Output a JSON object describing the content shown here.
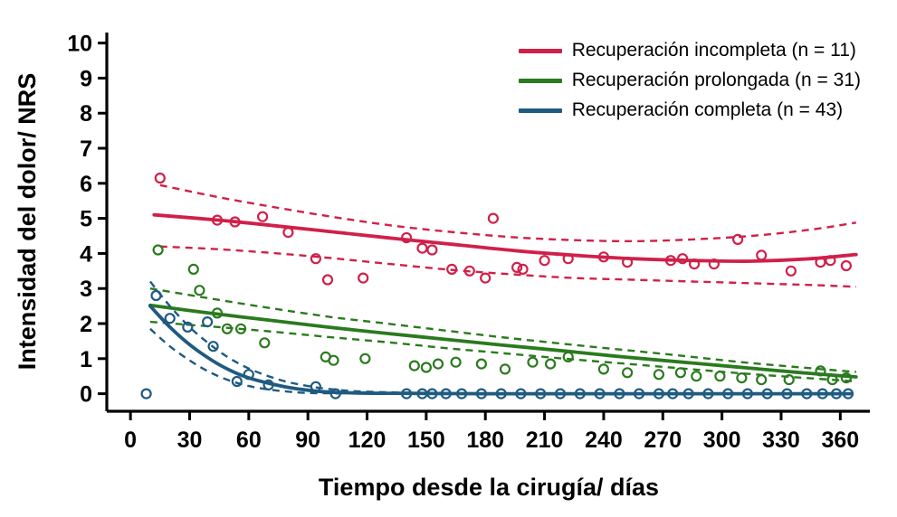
{
  "chart_data": {
    "type": "scatter",
    "title": "",
    "xlabel": "Tiempo desde la cirugía/ días",
    "ylabel": "Intensidad del dolor/ NRS",
    "xlim": [
      -12,
      375
    ],
    "ylim": [
      -0.5,
      10.3
    ],
    "x_ticks": [
      0,
      30,
      60,
      90,
      120,
      150,
      180,
      210,
      240,
      270,
      300,
      330,
      360
    ],
    "y_ticks": [
      0,
      1,
      2,
      3,
      4,
      5,
      6,
      7,
      8,
      9,
      10
    ],
    "grid": false,
    "legend_position": "top-right",
    "axis_color": "#000000",
    "series": [
      {
        "name": "Recuperación incompleta (n = 11)",
        "color": "#d0204a",
        "points": [
          [
            15,
            6.15
          ],
          [
            44,
            4.95
          ],
          [
            53,
            4.9
          ],
          [
            67,
            5.05
          ],
          [
            80,
            4.6
          ],
          [
            94,
            3.85
          ],
          [
            100,
            3.25
          ],
          [
            118,
            3.3
          ],
          [
            140,
            4.45
          ],
          [
            148,
            4.15
          ],
          [
            153,
            4.1
          ],
          [
            163,
            3.55
          ],
          [
            172,
            3.5
          ],
          [
            180,
            3.3
          ],
          [
            184,
            5.0
          ],
          [
            196,
            3.6
          ],
          [
            199,
            3.55
          ],
          [
            210,
            3.8
          ],
          [
            222,
            3.85
          ],
          [
            240,
            3.9
          ],
          [
            252,
            3.75
          ],
          [
            274,
            3.8
          ],
          [
            280,
            3.85
          ],
          [
            286,
            3.7
          ],
          [
            296,
            3.7
          ],
          [
            308,
            4.4
          ],
          [
            320,
            3.95
          ],
          [
            335,
            3.5
          ],
          [
            350,
            3.75
          ],
          [
            355,
            3.8
          ],
          [
            363,
            3.65
          ]
        ],
        "fit": [
          [
            12,
            5.1
          ],
          [
            45,
            4.95
          ],
          [
            75,
            4.78
          ],
          [
            105,
            4.6
          ],
          [
            135,
            4.42
          ],
          [
            165,
            4.25
          ],
          [
            195,
            4.08
          ],
          [
            225,
            3.95
          ],
          [
            255,
            3.85
          ],
          [
            285,
            3.8
          ],
          [
            315,
            3.78
          ],
          [
            345,
            3.85
          ],
          [
            368,
            3.97
          ]
        ],
        "ci_upper": [
          [
            15,
            5.95
          ],
          [
            45,
            5.6
          ],
          [
            75,
            5.3
          ],
          [
            105,
            5.02
          ],
          [
            135,
            4.78
          ],
          [
            165,
            4.6
          ],
          [
            195,
            4.46
          ],
          [
            225,
            4.38
          ],
          [
            255,
            4.35
          ],
          [
            285,
            4.4
          ],
          [
            315,
            4.5
          ],
          [
            345,
            4.68
          ],
          [
            368,
            4.88
          ]
        ],
        "ci_lower": [
          [
            15,
            4.2
          ],
          [
            45,
            4.12
          ],
          [
            75,
            4.0
          ],
          [
            105,
            3.85
          ],
          [
            135,
            3.68
          ],
          [
            165,
            3.52
          ],
          [
            195,
            3.4
          ],
          [
            225,
            3.3
          ],
          [
            255,
            3.25
          ],
          [
            285,
            3.2
          ],
          [
            315,
            3.15
          ],
          [
            345,
            3.1
          ],
          [
            368,
            3.05
          ]
        ]
      },
      {
        "name": "Recuperación prolongada (n = 31)",
        "color": "#2a7a1e",
        "points": [
          [
            14,
            4.1
          ],
          [
            32,
            3.55
          ],
          [
            35,
            2.95
          ],
          [
            44,
            2.3
          ],
          [
            49,
            1.85
          ],
          [
            56,
            1.85
          ],
          [
            68,
            1.45
          ],
          [
            99,
            1.05
          ],
          [
            103,
            0.95
          ],
          [
            119,
            1.0
          ],
          [
            144,
            0.8
          ],
          [
            150,
            0.75
          ],
          [
            156,
            0.85
          ],
          [
            165,
            0.9
          ],
          [
            178,
            0.85
          ],
          [
            190,
            0.7
          ],
          [
            204,
            0.9
          ],
          [
            213,
            0.85
          ],
          [
            222,
            1.05
          ],
          [
            240,
            0.7
          ],
          [
            252,
            0.6
          ],
          [
            268,
            0.55
          ],
          [
            279,
            0.6
          ],
          [
            287,
            0.5
          ],
          [
            299,
            0.5
          ],
          [
            310,
            0.45
          ],
          [
            320,
            0.4
          ],
          [
            334,
            0.4
          ],
          [
            350,
            0.65
          ],
          [
            356,
            0.4
          ],
          [
            363,
            0.45
          ]
        ],
        "fit": [
          [
            10,
            2.52
          ],
          [
            40,
            2.3
          ],
          [
            70,
            2.1
          ],
          [
            100,
            1.9
          ],
          [
            130,
            1.72
          ],
          [
            160,
            1.55
          ],
          [
            190,
            1.38
          ],
          [
            220,
            1.22
          ],
          [
            250,
            1.05
          ],
          [
            280,
            0.9
          ],
          [
            310,
            0.75
          ],
          [
            340,
            0.6
          ],
          [
            368,
            0.48
          ]
        ],
        "ci_upper": [
          [
            10,
            3.0
          ],
          [
            40,
            2.72
          ],
          [
            70,
            2.45
          ],
          [
            100,
            2.2
          ],
          [
            130,
            2.0
          ],
          [
            160,
            1.8
          ],
          [
            190,
            1.6
          ],
          [
            220,
            1.42
          ],
          [
            250,
            1.25
          ],
          [
            280,
            1.08
          ],
          [
            310,
            0.9
          ],
          [
            340,
            0.75
          ],
          [
            368,
            0.62
          ]
        ],
        "ci_lower": [
          [
            10,
            2.05
          ],
          [
            40,
            1.92
          ],
          [
            70,
            1.78
          ],
          [
            100,
            1.62
          ],
          [
            130,
            1.47
          ],
          [
            160,
            1.3
          ],
          [
            190,
            1.15
          ],
          [
            220,
            1.0
          ],
          [
            250,
            0.86
          ],
          [
            280,
            0.72
          ],
          [
            310,
            0.58
          ],
          [
            340,
            0.46
          ],
          [
            368,
            0.35
          ]
        ]
      },
      {
        "name": "Recuperación completa (n = 43)",
        "color": "#1f5a80",
        "points": [
          [
            8,
            0
          ],
          [
            13,
            2.8
          ],
          [
            20,
            2.15
          ],
          [
            29,
            1.9
          ],
          [
            39,
            2.05
          ],
          [
            42,
            1.35
          ],
          [
            54,
            0.35
          ],
          [
            60,
            0.55
          ],
          [
            70,
            0.25
          ],
          [
            94,
            0.2
          ],
          [
            104,
            0
          ],
          [
            140,
            0
          ],
          [
            148,
            0
          ],
          [
            153,
            0
          ],
          [
            160,
            0
          ],
          [
            168,
            0
          ],
          [
            178,
            0
          ],
          [
            188,
            0
          ],
          [
            198,
            0
          ],
          [
            208,
            0
          ],
          [
            218,
            0
          ],
          [
            228,
            0
          ],
          [
            238,
            0
          ],
          [
            248,
            0
          ],
          [
            258,
            0
          ],
          [
            268,
            0
          ],
          [
            275,
            0
          ],
          [
            283,
            0
          ],
          [
            293,
            0
          ],
          [
            303,
            0
          ],
          [
            313,
            0
          ],
          [
            323,
            0
          ],
          [
            333,
            0
          ],
          [
            343,
            0
          ],
          [
            351,
            0
          ],
          [
            358,
            0
          ],
          [
            364,
            0
          ]
        ],
        "fit": [
          [
            10,
            2.5
          ],
          [
            20,
            1.9
          ],
          [
            30,
            1.4
          ],
          [
            40,
            1.0
          ],
          [
            50,
            0.68
          ],
          [
            60,
            0.45
          ],
          [
            70,
            0.3
          ],
          [
            80,
            0.18
          ],
          [
            90,
            0.1
          ],
          [
            100,
            0.05
          ],
          [
            115,
            0.02
          ],
          [
            140,
            0.01
          ],
          [
            180,
            0
          ],
          [
            240,
            0
          ],
          [
            300,
            0
          ],
          [
            365,
            0
          ]
        ],
        "ci_upper": [
          [
            10,
            3.2
          ],
          [
            20,
            2.5
          ],
          [
            30,
            1.9
          ],
          [
            40,
            1.42
          ],
          [
            50,
            1.02
          ],
          [
            60,
            0.72
          ],
          [
            70,
            0.5
          ],
          [
            80,
            0.33
          ],
          [
            90,
            0.22
          ],
          [
            100,
            0.14
          ],
          [
            115,
            0.07
          ],
          [
            140,
            0.03
          ],
          [
            180,
            0.01
          ],
          [
            240,
            0
          ],
          [
            300,
            0
          ],
          [
            365,
            0
          ]
        ],
        "ci_lower": [
          [
            10,
            1.85
          ],
          [
            20,
            1.35
          ],
          [
            30,
            0.95
          ],
          [
            40,
            0.62
          ],
          [
            50,
            0.38
          ],
          [
            60,
            0.22
          ],
          [
            70,
            0.12
          ],
          [
            80,
            0.06
          ],
          [
            90,
            0.02
          ],
          [
            110,
            0.01
          ],
          [
            140,
            0
          ],
          [
            240,
            0
          ],
          [
            365,
            0
          ]
        ]
      }
    ]
  }
}
